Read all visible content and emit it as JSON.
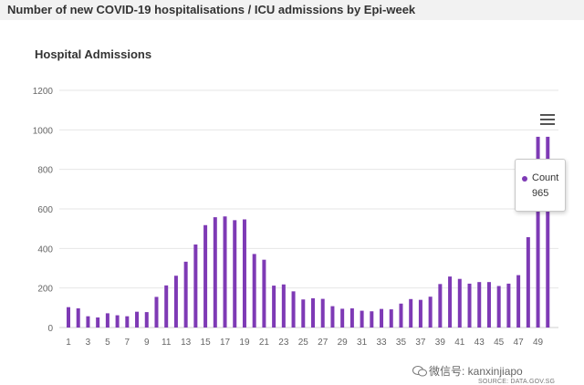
{
  "page": {
    "title": "Number of new COVID-19 hospitalisations / ICU admissions by Epi-week"
  },
  "tooltip": {
    "label": "Count",
    "value": "965"
  },
  "watermark": {
    "text": "微信号: kanxinjiapo"
  },
  "source": {
    "text": "SOURCE: DATA.GOV.SG"
  },
  "colors": {
    "bar": "#7e3ab5",
    "grid": "#e6e6e6",
    "axis_text": "#666666"
  },
  "icons": {
    "menu": "hamburger-icon",
    "tooltip_marker": "dot-icon",
    "watermark": "wechat-icon"
  },
  "chart_data": {
    "type": "bar",
    "title": "Hospital Admissions",
    "xlabel": "",
    "ylabel": "",
    "ylim": [
      0,
      1200
    ],
    "yticks": [
      0,
      200,
      400,
      600,
      800,
      1000,
      1200
    ],
    "grid": true,
    "categories": [
      1,
      2,
      3,
      4,
      5,
      6,
      7,
      8,
      9,
      10,
      11,
      12,
      13,
      14,
      15,
      16,
      17,
      18,
      19,
      20,
      21,
      22,
      23,
      24,
      25,
      26,
      27,
      28,
      29,
      30,
      31,
      32,
      33,
      34,
      35,
      36,
      37,
      38,
      39,
      40,
      41,
      42,
      43,
      44,
      45,
      46,
      47,
      48,
      49,
      50
    ],
    "xtick_labels": [
      1,
      3,
      5,
      7,
      9,
      11,
      13,
      15,
      17,
      19,
      21,
      23,
      25,
      27,
      29,
      31,
      33,
      35,
      37,
      39,
      41,
      43,
      45,
      47,
      49
    ],
    "series": [
      {
        "name": "Count",
        "values": [
          103,
          97,
          57,
          51,
          72,
          62,
          57,
          80,
          78,
          155,
          213,
          262,
          333,
          420,
          518,
          558,
          562,
          543,
          547,
          372,
          343,
          212,
          218,
          183,
          142,
          148,
          145,
          108,
          95,
          97,
          85,
          82,
          94,
          92,
          121,
          144,
          140,
          156,
          220,
          258,
          246,
          222,
          230,
          230,
          210,
          222,
          265,
          457,
          965,
          965
        ]
      }
    ]
  }
}
